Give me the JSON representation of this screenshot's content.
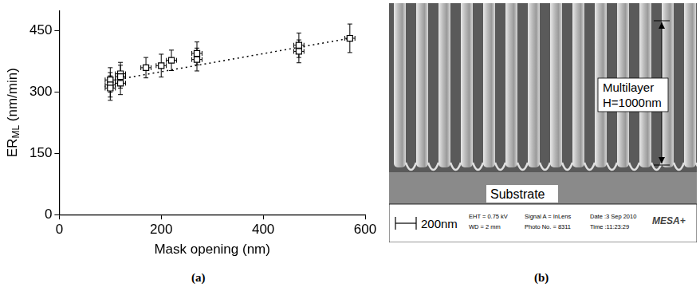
{
  "chart_data": {
    "type": "scatter",
    "x_label": "Mask opening (nm)",
    "y_label": {
      "text": "ER",
      "subscript": "ML",
      "unit": "(nm/min)"
    },
    "xlim": [
      0,
      600
    ],
    "xticks": [
      0,
      200,
      400,
      600
    ],
    "ylim": [
      0,
      500
    ],
    "yticks": [
      0,
      150,
      300,
      450
    ],
    "grid": false,
    "series": [
      {
        "type": "scatter",
        "marker": "square",
        "color": "#000000",
        "x": [
          100,
          100,
          100,
          120,
          120,
          120,
          170,
          200,
          220,
          270,
          270,
          470,
          470,
          570
        ],
        "values": [
          330,
          318,
          310,
          345,
          338,
          322,
          360,
          365,
          378,
          395,
          380,
          415,
          400,
          432
        ],
        "x_error": [
          10,
          10,
          10,
          10,
          10,
          10,
          10,
          10,
          10,
          10,
          10,
          10,
          10,
          10
        ],
        "y_error": [
          30,
          30,
          30,
          28,
          28,
          28,
          25,
          28,
          25,
          28,
          28,
          30,
          28,
          35
        ]
      },
      {
        "type": "line",
        "line_style": "dotted",
        "color": "#000000",
        "x": [
          100,
          570
        ],
        "values": [
          328,
          432
        ]
      }
    ]
  },
  "panel_labels": [
    "(a)",
    "(b)"
  ],
  "sem_image": {
    "annotation": [
      "Multilayer",
      "H=1000nm"
    ],
    "substrate_label": "Substrate",
    "scale_bar": "200nm",
    "info": [
      [
        "EHT = 0.75 kV",
        "WD =  2 mm"
      ],
      [
        "Signal A = InLens",
        "Photo No. = 8311"
      ],
      [
        "Date :3 Sep 2010",
        "Time :11:23:29"
      ]
    ],
    "logo": "MESA+"
  }
}
